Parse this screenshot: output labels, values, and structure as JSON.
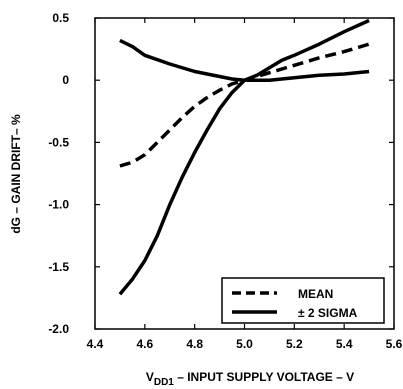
{
  "chart_data": {
    "type": "line",
    "xlabel_main": "V",
    "xlabel_sub": "DD1",
    "xlabel_rest": " – INPUT SUPPLY VOLTAGE – V",
    "ylabel": "dG – GAIN DRIFT– %",
    "xlim": [
      4.4,
      5.6
    ],
    "ylim": [
      -2.0,
      0.5
    ],
    "xticks": [
      4.4,
      4.6,
      4.8,
      5.0,
      5.2,
      5.4,
      5.6
    ],
    "xtick_labels": [
      "4.4",
      "4.6",
      "4.8",
      "5.0",
      "5.2",
      "5.4",
      "5.6"
    ],
    "yticks": [
      0.5,
      0,
      -0.5,
      -1.0,
      -1.5,
      -2.0
    ],
    "ytick_labels": [
      "0.5",
      "0",
      "-0.5",
      "-1.0",
      "-1.5",
      "-2.0"
    ],
    "grid": false,
    "legend_position": "bottom-right",
    "legend": [
      {
        "label": "MEAN",
        "style": "dashed"
      },
      {
        "label": "± 2 SIGMA",
        "style": "solid"
      }
    ],
    "series": [
      {
        "name": "MEAN",
        "style": "dashed",
        "x": [
          4.5,
          4.55,
          4.6,
          4.65,
          4.7,
          4.75,
          4.8,
          4.85,
          4.9,
          4.95,
          5.0,
          5.05,
          5.1,
          5.2,
          5.3,
          5.4,
          5.5
        ],
        "y": [
          -0.69,
          -0.66,
          -0.6,
          -0.5,
          -0.4,
          -0.3,
          -0.21,
          -0.14,
          -0.08,
          -0.03,
          0.0,
          0.03,
          0.06,
          0.12,
          0.18,
          0.23,
          0.29
        ]
      },
      {
        "name": "± 2 SIGMA (upper)",
        "style": "solid",
        "x": [
          4.5,
          4.55,
          4.6,
          4.7,
          4.8,
          4.9,
          4.95,
          5.0,
          5.05,
          5.1,
          5.15,
          5.2,
          5.3,
          5.4,
          5.5
        ],
        "y": [
          0.32,
          0.27,
          0.2,
          0.13,
          0.07,
          0.03,
          0.01,
          0.0,
          0.04,
          0.1,
          0.16,
          0.2,
          0.29,
          0.39,
          0.48
        ]
      },
      {
        "name": "± 2 SIGMA (lower)",
        "style": "solid",
        "x": [
          4.5,
          4.55,
          4.6,
          4.65,
          4.7,
          4.75,
          4.8,
          4.85,
          4.9,
          4.95,
          5.0,
          5.05,
          5.1,
          5.2,
          5.3,
          5.4,
          5.5
        ],
        "y": [
          -1.72,
          -1.6,
          -1.45,
          -1.25,
          -1.0,
          -0.78,
          -0.58,
          -0.4,
          -0.23,
          -0.1,
          0.0,
          0.0,
          0.0,
          0.02,
          0.04,
          0.05,
          0.07
        ]
      }
    ]
  }
}
